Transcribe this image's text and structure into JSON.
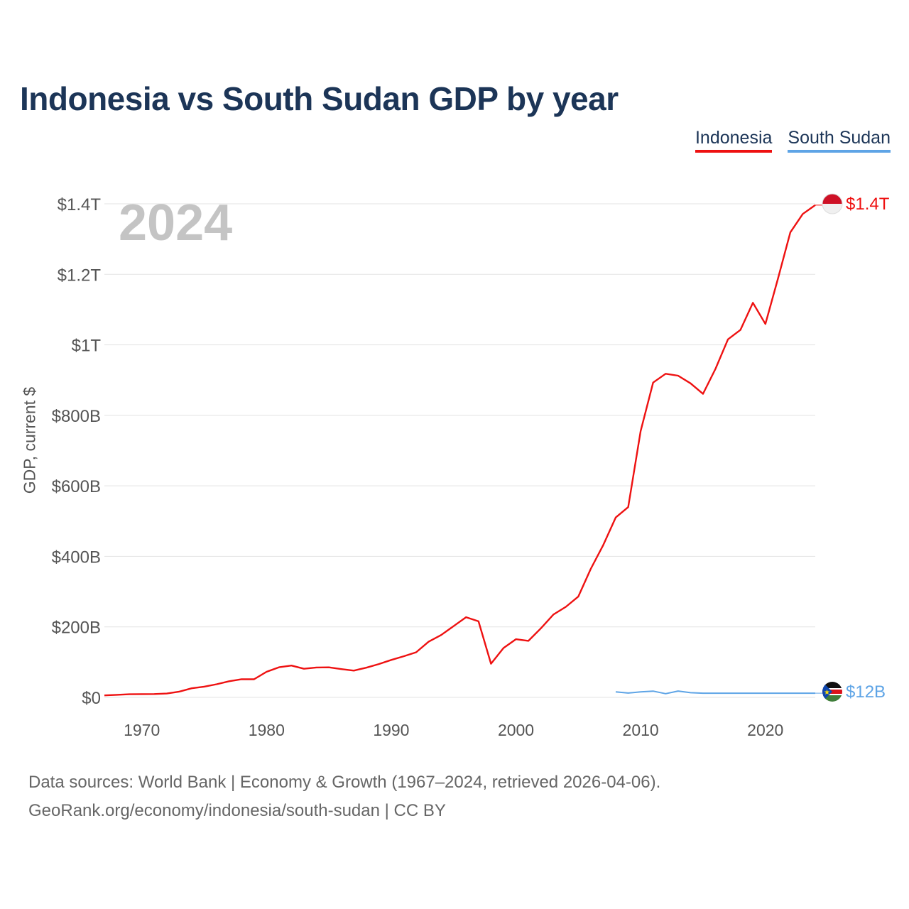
{
  "chart_data": {
    "type": "line",
    "title": "Indonesia vs South Sudan GDP by year",
    "ylabel": "GDP, current $",
    "xlabel": "",
    "year_label": "2024",
    "xlim": [
      1967,
      2024
    ],
    "ylim": [
      0,
      1400
    ],
    "y_unit": "billion USD",
    "x_ticks": [
      1970,
      1980,
      1990,
      2000,
      2010,
      2020
    ],
    "y_ticks": [
      {
        "value": 0,
        "label": "$0"
      },
      {
        "value": 200,
        "label": "$200B"
      },
      {
        "value": 400,
        "label": "$400B"
      },
      {
        "value": 600,
        "label": "$600B"
      },
      {
        "value": 800,
        "label": "$800B"
      },
      {
        "value": 1000,
        "label": "$1T"
      },
      {
        "value": 1200,
        "label": "$1.2T"
      },
      {
        "value": 1400,
        "label": "$1.4T"
      }
    ],
    "legend": [
      "Indonesia",
      "South Sudan"
    ],
    "legend_position": "top-right",
    "series": [
      {
        "name": "Indonesia",
        "color": "#ee1111",
        "end_label": "$1.4T",
        "flag": "indonesia-flag",
        "points": [
          [
            1967,
            5.7
          ],
          [
            1968,
            7.2
          ],
          [
            1969,
            8.8
          ],
          [
            1970,
            9.2
          ],
          [
            1971,
            9.5
          ],
          [
            1972,
            10.9
          ],
          [
            1973,
            16.3
          ],
          [
            1974,
            25.8
          ],
          [
            1975,
            30.5
          ],
          [
            1976,
            37.3
          ],
          [
            1977,
            45.8
          ],
          [
            1978,
            51.5
          ],
          [
            1979,
            51.4
          ],
          [
            1980,
            72.5
          ],
          [
            1981,
            85.5
          ],
          [
            1982,
            90.2
          ],
          [
            1983,
            81.1
          ],
          [
            1984,
            84.9
          ],
          [
            1985,
            85.3
          ],
          [
            1986,
            80.1
          ],
          [
            1987,
            75.9
          ],
          [
            1988,
            84.3
          ],
          [
            1989,
            94.5
          ],
          [
            1990,
            106.1
          ],
          [
            1991,
            116.6
          ],
          [
            1992,
            128.0
          ],
          [
            1993,
            158.0
          ],
          [
            1994,
            176.9
          ],
          [
            1995,
            202.1
          ],
          [
            1996,
            227.4
          ],
          [
            1997,
            215.7
          ],
          [
            1998,
            95.4
          ],
          [
            1999,
            140.0
          ],
          [
            2000,
            165.0
          ],
          [
            2001,
            160.4
          ],
          [
            2002,
            195.7
          ],
          [
            2003,
            234.8
          ],
          [
            2004,
            256.8
          ],
          [
            2005,
            285.9
          ],
          [
            2006,
            364.6
          ],
          [
            2007,
            432.2
          ],
          [
            2008,
            510.2
          ],
          [
            2009,
            539.6
          ],
          [
            2010,
            755.1
          ],
          [
            2011,
            892.9
          ],
          [
            2012,
            917.9
          ],
          [
            2013,
            912.5
          ],
          [
            2014,
            890.8
          ],
          [
            2015,
            860.9
          ],
          [
            2016,
            931.9
          ],
          [
            2017,
            1015.6
          ],
          [
            2018,
            1042.3
          ],
          [
            2019,
            1119.1
          ],
          [
            2020,
            1059.1
          ],
          [
            2021,
            1186.5
          ],
          [
            2022,
            1319.1
          ],
          [
            2023,
            1371.2
          ],
          [
            2024,
            1396.3
          ]
        ]
      },
      {
        "name": "South Sudan",
        "color": "#5ea4e6",
        "end_label": "$12B",
        "flag": "south-sudan-flag",
        "points": [
          [
            2008,
            15.5
          ],
          [
            2009,
            12.2
          ],
          [
            2010,
            15.7
          ],
          [
            2011,
            17.8
          ],
          [
            2012,
            10.4
          ],
          [
            2013,
            18.0
          ],
          [
            2014,
            13.3
          ],
          [
            2015,
            11.9
          ],
          [
            2024,
            11.9
          ]
        ]
      }
    ]
  },
  "footer": {
    "line1": "Data sources: World Bank | Economy & Growth (1967–2024, retrieved 2026-04-06).",
    "line2": "GeoRank.org/economy/indonesia/south-sudan | CC BY"
  }
}
